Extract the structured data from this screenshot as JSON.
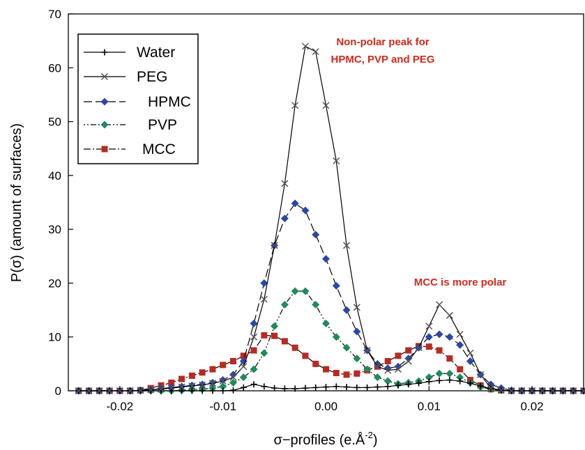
{
  "chart_data": {
    "type": "line",
    "xlabel": "σ−profiles (e.Å⁻²)",
    "ylabel": "P(σ) (amount of surfaces)",
    "xlim": [
      -0.025,
      0.025
    ],
    "ylim": [
      0,
      70
    ],
    "x_ticks": [
      -0.02,
      -0.01,
      0.0,
      0.01,
      0.02
    ],
    "x_tick_labels": [
      "-0.02",
      "-0.01",
      "0.00",
      "0.01",
      "0.02"
    ],
    "y_ticks": [
      0,
      10,
      20,
      30,
      40,
      50,
      60,
      70
    ],
    "y_tick_labels": [
      "0",
      "10",
      "20",
      "30",
      "40",
      "50",
      "60",
      "70"
    ],
    "grid": false,
    "legend_position": "top-left",
    "x": [
      -0.024,
      -0.023,
      -0.022,
      -0.021,
      -0.02,
      -0.019,
      -0.018,
      -0.017,
      -0.016,
      -0.015,
      -0.014,
      -0.013,
      -0.012,
      -0.011,
      -0.01,
      -0.009,
      -0.008,
      -0.007,
      -0.006,
      -0.005,
      -0.004,
      -0.003,
      -0.002,
      -0.001,
      0.0,
      0.001,
      0.002,
      0.003,
      0.004,
      0.005,
      0.006,
      0.007,
      0.008,
      0.009,
      0.01,
      0.011,
      0.012,
      0.013,
      0.014,
      0.015,
      0.016,
      0.017,
      0.018,
      0.019,
      0.02,
      0.021,
      0.022,
      0.023,
      0.024,
      0.025
    ],
    "series": [
      {
        "name": "Water",
        "color": "#000000",
        "marker": "plus",
        "dash": "solid",
        "values": [
          0,
          0,
          0,
          0,
          0,
          0,
          0,
          0,
          0,
          0,
          0,
          0,
          0,
          0,
          0,
          0.1,
          0.6,
          1.2,
          0.8,
          0.5,
          0.4,
          0.4,
          0.5,
          0.6,
          0.7,
          0.8,
          0.7,
          0.6,
          0.6,
          0.7,
          0.8,
          1.0,
          1.2,
          1.4,
          1.7,
          1.9,
          2.0,
          1.8,
          1.4,
          0.9,
          0.4,
          0.1,
          0,
          0,
          0,
          0,
          0,
          0,
          0,
          0
        ]
      },
      {
        "name": "PEG",
        "color": "#000000",
        "marker": "x",
        "dash": "solid",
        "values": [
          0,
          0,
          0,
          0,
          0,
          0,
          0.1,
          0.2,
          0.3,
          0.5,
          0.7,
          0.9,
          1.1,
          1.4,
          1.8,
          2.5,
          4.5,
          10,
          17,
          27,
          38.5,
          53,
          64,
          63,
          53,
          42.7,
          27,
          15.5,
          7.5,
          4.5,
          3.8,
          4.0,
          5.5,
          8.0,
          12,
          16,
          14,
          10.5,
          7,
          3,
          0.5,
          0.1,
          0,
          0,
          0,
          0,
          0,
          0,
          0,
          0
        ]
      },
      {
        "name": "HPMC",
        "color": "#2a46a8",
        "marker": "diamond",
        "dash": "12,5",
        "values": [
          0,
          0,
          0,
          0,
          0,
          0,
          0.1,
          0.2,
          0.4,
          0.6,
          0.8,
          1.0,
          1.2,
          1.5,
          2.0,
          3.0,
          5.5,
          12.5,
          20,
          27,
          32,
          34.8,
          33.5,
          29,
          24.5,
          19.5,
          15,
          11,
          7.5,
          5,
          4.2,
          4.5,
          6,
          8,
          10,
          10.5,
          10,
          8.5,
          5.5,
          3,
          1.2,
          0.5,
          0.1,
          0,
          0,
          0,
          0,
          0,
          0,
          0
        ]
      },
      {
        "name": "PVP",
        "color": "#1f8a5a",
        "marker": "diamond",
        "dash": "2,3,2,3,8,3",
        "values": [
          0,
          0,
          0,
          0,
          0,
          0,
          0,
          0,
          0,
          0,
          0.1,
          0.2,
          0.3,
          0.5,
          0.8,
          1.5,
          2.5,
          4,
          7,
          12,
          16,
          18.5,
          18.5,
          16,
          12.5,
          10,
          8,
          6,
          4,
          2.5,
          1.8,
          1.3,
          1.5,
          1.8,
          2.5,
          3.2,
          3.2,
          2.5,
          1.5,
          0.7,
          0.3,
          0.1,
          0,
          0,
          0,
          0,
          0,
          0,
          0,
          0
        ]
      },
      {
        "name": "MCC",
        "color": "#b82a22",
        "marker": "square",
        "dash": "10,3,2,3",
        "values": [
          0,
          0,
          0,
          0,
          0,
          0,
          0.1,
          0.5,
          1.0,
          1.5,
          2.2,
          2.8,
          3.4,
          4.0,
          4.8,
          5.5,
          6.5,
          7.5,
          10.3,
          10.2,
          9.2,
          8,
          6.5,
          5,
          4,
          3.3,
          3,
          3.2,
          3.8,
          4.5,
          5.5,
          6.5,
          7.5,
          8.3,
          8.2,
          7.5,
          6,
          4,
          2,
          1,
          0.3,
          0.1,
          0,
          0,
          0,
          0,
          0,
          0,
          0,
          0
        ]
      }
    ],
    "annotations": [
      {
        "text": "Non-polar peak for",
        "color": "#d22a1c"
      },
      {
        "text": "HPMC, PVP and PEG",
        "color": "#d22a1c"
      },
      {
        "text": "MCC is more polar",
        "color": "#d22a1c"
      }
    ]
  }
}
